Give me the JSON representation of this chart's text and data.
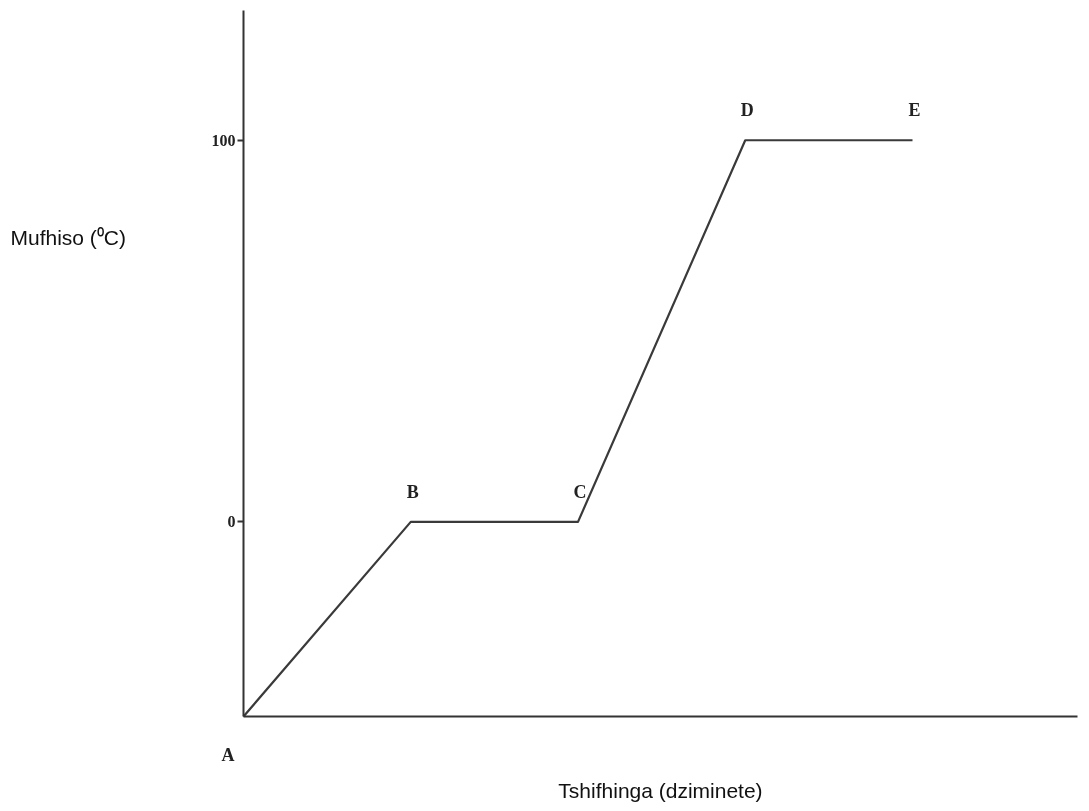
{
  "chart_data": {
    "type": "line",
    "xlabel": "Tshifhinga (dziminete)",
    "ylabel": "Mufhiso (⁰C)",
    "categories": [
      null,
      null,
      null,
      null,
      null
    ],
    "series": [
      {
        "color": "#3a3a3a",
        "values": [
          -51,
          0,
          0,
          100,
          100
        ],
        "value_labels": [
          "A",
          "B",
          "C",
          "D",
          "E"
        ]
      }
    ],
    "ylim": [
      -51,
      134
    ],
    "yticks": [
      0,
      100
    ],
    "tick_labels": "y",
    "grid": false,
    "marker": "none",
    "line_style": "solid"
  }
}
